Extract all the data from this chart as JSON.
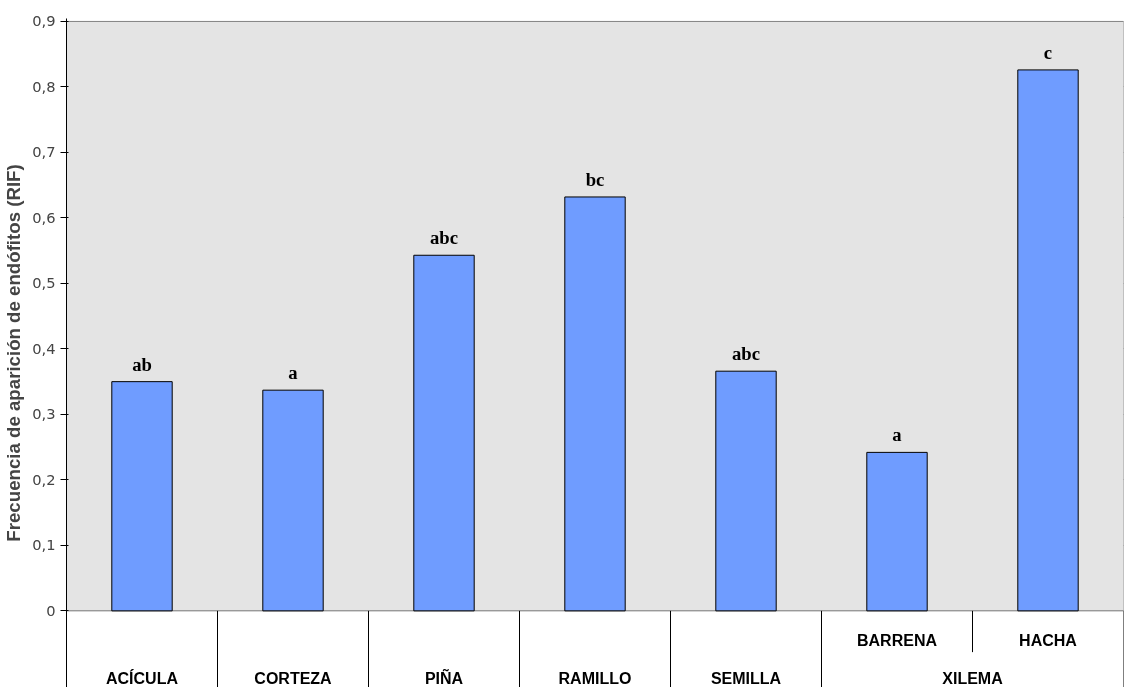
{
  "chart_data": {
    "type": "bar",
    "ylabel": "Frecuencia de aparición de endófitos (RIF)",
    "categories": [
      "ACÍCULA",
      "CORTEZA",
      "PIÑA",
      "RAMILLO",
      "SEMILLA",
      "BARRENA",
      "HACHA"
    ],
    "values": [
      0.35,
      0.337,
      0.543,
      0.632,
      0.366,
      0.242,
      0.826
    ],
    "value_labels": [
      "ab",
      "a",
      "abc",
      "bc",
      "abc",
      "a",
      "c"
    ],
    "color": "#6f9cff",
    "ylim": [
      0,
      0.9
    ],
    "yticks": [
      0,
      {
        "value": 0.1,
        "label": "0,1"
      },
      {
        "value": 0.2,
        "label": "0,2"
      },
      {
        "value": 0.3,
        "label": "0,3"
      },
      {
        "value": 0.4,
        "label": "0,4"
      },
      {
        "value": 0.5,
        "label": "0,5"
      },
      {
        "value": 0.6,
        "label": "0,6"
      },
      {
        "value": 0.7,
        "label": "0,7"
      },
      {
        "value": 0.8,
        "label": "0,8"
      },
      {
        "value": 0.9,
        "label": "0,9"
      }
    ],
    "grid": "y",
    "annotations": [
      "XILEMA"
    ]
  }
}
